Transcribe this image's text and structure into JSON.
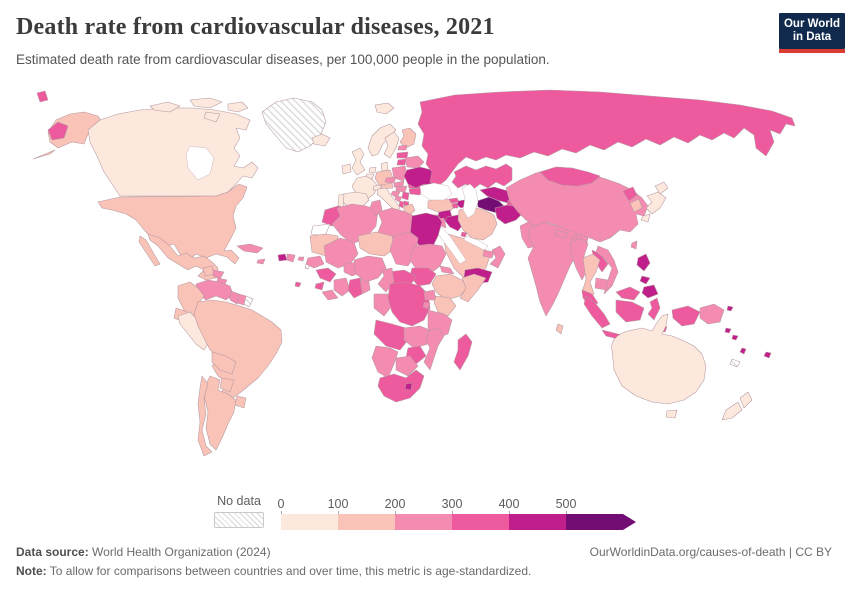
{
  "header": {
    "title": "Death rate from cardiovascular diseases, 2021",
    "subtitle": "Estimated death rate from cardiovascular diseases, per 100,000 people in the population."
  },
  "logo": {
    "line1": "Our World",
    "line2": "in Data",
    "bg_color": "#102a4e",
    "accent_color": "#d93a32"
  },
  "legend": {
    "no_data_label": "No data",
    "tick_labels": [
      "0",
      "100",
      "200",
      "300",
      "400",
      "500"
    ],
    "bin_colors": [
      "#fce8dd",
      "#f9c3b8",
      "#f48bb1",
      "#ee5a9e",
      "#c01f8b",
      "#730c74"
    ]
  },
  "footer": {
    "source_label": "Data source:",
    "source_text": " World Health Organization (2024)",
    "rights_text": "OurWorldinData.org/causes-of-death | CC BY",
    "note_label": "Note:",
    "note_text": " To allow for comparisons between countries and over time, this metric is age-standardized."
  },
  "chart_data": {
    "type": "heatmap",
    "subtype": "world-choropleth",
    "title": "Death rate from cardiovascular diseases, 2021",
    "unit": "deaths per 100,000 people (age-standardized)",
    "bin_edges": [
      0,
      100,
      200,
      300,
      400,
      500
    ],
    "bin_labels": [
      "0-100",
      "100-200",
      "200-300",
      "300-400",
      "400-500",
      "500+"
    ],
    "legend_position": "bottom",
    "countries": {
      "canada": 0,
      "usa": 1,
      "greenland": "nd",
      "mexico": 1,
      "guatemala": 1,
      "honduras": 2,
      "nicaragua": 2,
      "costa-rica": 1,
      "panama": 2,
      "cuba": 2,
      "jamaica": 2,
      "haiti": 4,
      "dominican-republic": 2,
      "puerto-rico": 2,
      "lesser-antilles": "nd",
      "trinidad-and-tobago": 3,
      "venezuela": 2,
      "colombia": 1,
      "guyana": 2,
      "suriname": 2,
      "french-guiana": "nd",
      "ecuador": 1,
      "peru": 0,
      "brazil": 1,
      "bolivia": 1,
      "paraguay": 1,
      "uruguay": 1,
      "argentina": 1,
      "chile": 1,
      "iceland": 0,
      "ireland": 0,
      "united-kingdom": 0,
      "portugal": 0,
      "spain": 0,
      "france": 0,
      "belgium": 0,
      "netherlands": 0,
      "germany": 1,
      "denmark": 0,
      "norway": 0,
      "sweden": 0,
      "finland": 1,
      "estonia": 2,
      "latvia": 3,
      "lithuania": 3,
      "belarus": 2,
      "poland": 2,
      "czechia": 2,
      "austria": 1,
      "switzerland": 0,
      "italy": 0,
      "croatia": 2,
      "bosnia": 2,
      "serbia": 3,
      "albania": 3,
      "north-macedonia": 3,
      "greece": 1,
      "hungary": 2,
      "slovakia": 2,
      "romania": 3,
      "bulgaria": 3,
      "moldova": 3,
      "ukraine": 4,
      "russia": 3,
      "svalbard": 0,
      "kazakhstan": 3,
      "turkmenistan": 5,
      "uzbekistan": 4,
      "kyrgyzstan": 3,
      "tajikistan": 3,
      "afghanistan": 4,
      "pakistan": 2,
      "india": 2,
      "nepal": 2,
      "bhutan": 2,
      "bangladesh": 2,
      "sri-lanka": 1,
      "china": 2,
      "mongolia": 3,
      "north-korea": 3,
      "south-korea": 1,
      "japan": 0,
      "taiwan": 2,
      "myanmar": 2,
      "thailand": 1,
      "laos": 3,
      "vietnam": 2,
      "cambodia": 2,
      "malaysia": 3,
      "indonesia": 3,
      "philippines": 4,
      "papua-new-guinea": 2,
      "png-islands": 4,
      "solomon-islands": 4,
      "vanuatu": 4,
      "fiji": 4,
      "new-caledonia": "nd",
      "australia": 0,
      "new-zealand": 0,
      "turkey": 1,
      "georgia": 3,
      "armenia": 3,
      "azerbaijan": 4,
      "cyprus": 1,
      "syria": 4,
      "jordan": 2,
      "iraq": 4,
      "iran": 1,
      "kuwait": 3,
      "saudi-arabia": 1,
      "yemen": 4,
      "oman": 2,
      "uae": 2,
      "morocco": 3,
      "western-sahara": "w",
      "algeria": 2,
      "tunisia": 2,
      "libya": 2,
      "egypt": 4,
      "mauritania": 1,
      "mali": 2,
      "senegal": 2,
      "guinea": 3,
      "sierra-leone": 3,
      "liberia": 2,
      "cote-divoire": 2,
      "ghana": 3,
      "togo-benin": 2,
      "burkina-faso": 2,
      "niger": 1,
      "nigeria": 2,
      "chad": 2,
      "sudan": 2,
      "eritrea": 2,
      "ethiopia": 1,
      "somalia": 1,
      "kenya": 1,
      "uganda": 2,
      "rwanda-burundi": 2,
      "south-sudan": 3,
      "central-african-republic": 3,
      "cameroon": 2,
      "gabon-congo": 2,
      "dr-congo": 3,
      "angola": 3,
      "zambia": 2,
      "tanzania": 2,
      "malawi": 2,
      "mozambique": 2,
      "zimbabwe": 3,
      "botswana": 2,
      "namibia": 2,
      "south-africa": 3,
      "lesotho": 4,
      "madagascar": 3
    }
  }
}
